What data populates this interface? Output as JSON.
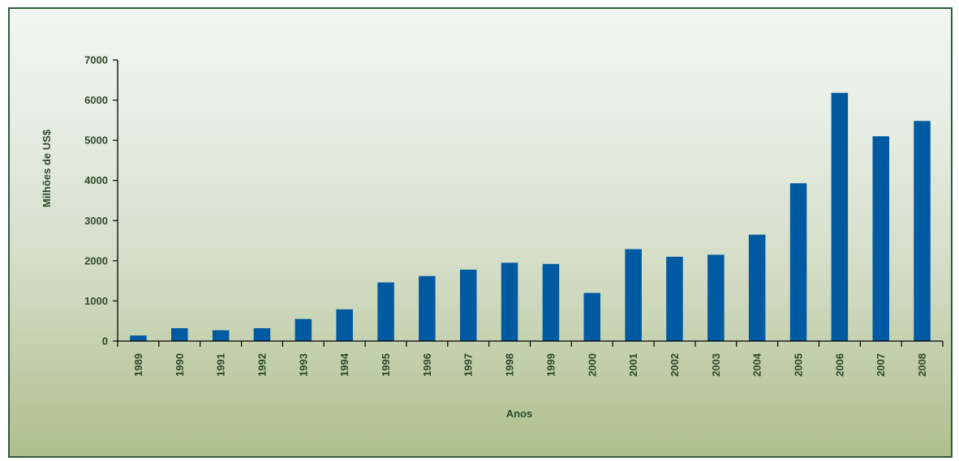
{
  "colors": {
    "bar": "#005aa2",
    "axis": "#000000",
    "text": "#2e4a2a",
    "frame_border": "#2f5a3a"
  },
  "chart_data": {
    "type": "bar",
    "title": "",
    "xlabel": "Anos",
    "ylabel": "Milhões de US$",
    "ylim": [
      0,
      7000
    ],
    "yticks": [
      0,
      1000,
      2000,
      3000,
      4000,
      5000,
      6000,
      7000
    ],
    "ytick_labels": [
      "0",
      "1000",
      "2000",
      "3000",
      "4000",
      "5000",
      "6000",
      "7000"
    ],
    "grid": false,
    "categories": [
      "1989",
      "1990",
      "1991",
      "1992",
      "1993",
      "1994",
      "1995",
      "1996",
      "1997",
      "1998",
      "1999",
      "2000",
      "2001",
      "2002",
      "2003",
      "2004",
      "2005",
      "2006",
      "2007",
      "2008"
    ],
    "values": [
      140,
      320,
      270,
      320,
      550,
      790,
      1460,
      1620,
      1780,
      1950,
      1920,
      1200,
      2290,
      2100,
      2150,
      2650,
      3930,
      6180,
      5100,
      5480
    ]
  }
}
